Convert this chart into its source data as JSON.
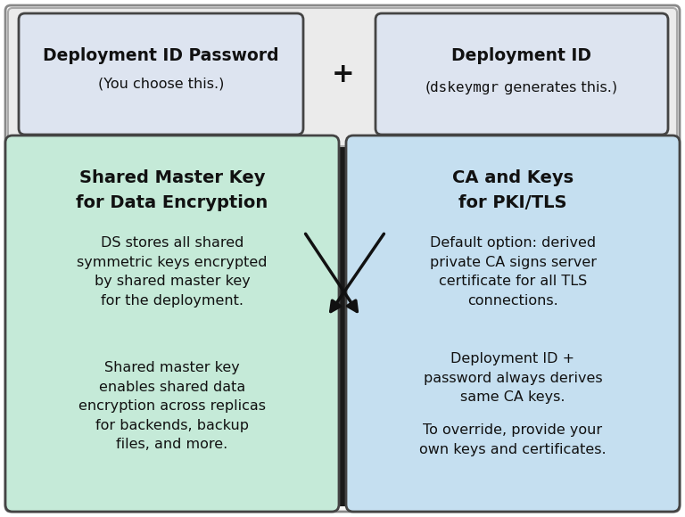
{
  "fig_bg": "#ffffff",
  "outer_border_bg": "#1a1a1a",
  "top_panel_bg": "#ebebeb",
  "top_box_bg": "#dde4f0",
  "top_box_border": "#444444",
  "top_panel_border": "#aaaaaa",
  "left_box_bg": "#c5ead8",
  "left_box_border": "#444444",
  "right_box_bg": "#c5dff0",
  "right_box_border": "#444444",
  "text_color": "#111111",
  "top_box1_title": "Deployment ID Password",
  "top_box1_sub": "(You choose this.)",
  "top_box2_title": "Deployment ID",
  "top_box2_sub_pre": "(",
  "top_box2_sub_mono": "dskeymgr",
  "top_box2_sub_post": " generates this.)",
  "plus_text": "+",
  "left_title_line1": "Shared Master Key",
  "left_title_line2": "for Data Encryption",
  "left_body1": "DS stores all shared\nsymmetric keys encrypted\nby shared master key\nfor the deployment.",
  "left_body2": "Shared master key\nenables shared data\nencryption across replicas\nfor backends, backup\nfiles, and more.",
  "right_title_line1": "CA and Keys",
  "right_title_line2": "for PKI/TLS",
  "right_body1": "Default option: derived\nprivate CA signs server\ncertificate for all TLS\nconnections.",
  "right_body2": "Deployment ID +\npassword always derives\nsame CA keys.",
  "right_body3": "To override, provide your\nown keys and certificates.",
  "arrow_color": "#111111",
  "title_fontsize": 13.5,
  "body_fontsize": 11.5
}
